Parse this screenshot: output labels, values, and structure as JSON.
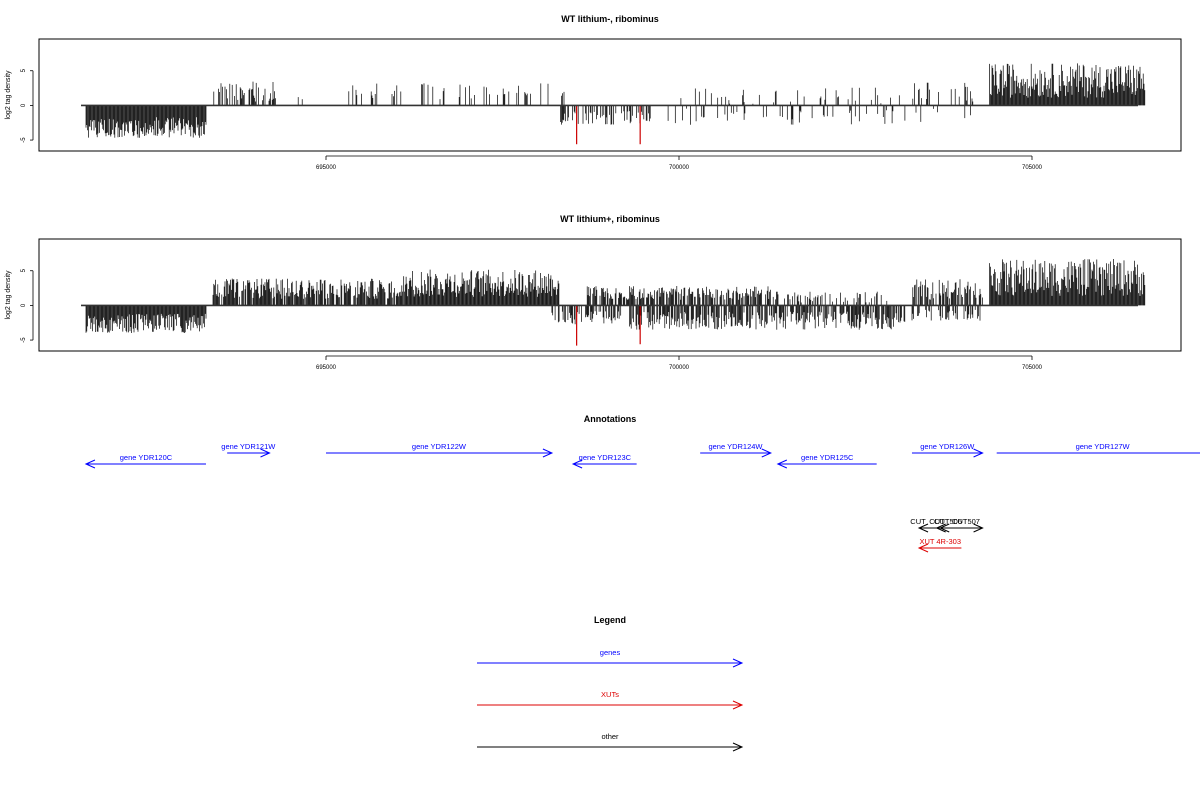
{
  "chart_data": [
    {
      "type": "bar",
      "title": "WT lithium-, ribominus",
      "ylabel": "log2 tag density",
      "xlabel": "",
      "xlim": [
        691000,
        707000
      ],
      "ylim": [
        -6,
        9
      ],
      "yticks": [
        "-5",
        "0",
        "5"
      ],
      "xticks": [
        "695000",
        "700000",
        "705000"
      ],
      "grid": false,
      "series": [
        {
          "color": "#000000",
          "regions": [
            {
              "from": 691600,
              "to": 693300,
              "mean": -3.2,
              "amp": 1.5,
              "sign": -1,
              "density": 1.0
            },
            {
              "from": 693400,
              "to": 694300,
              "mean": 2.0,
              "amp": 1.5,
              "sign": 1,
              "density": 0.35
            },
            {
              "from": 694300,
              "to": 695300,
              "mean": 1.0,
              "amp": 0.4,
              "sign": 1,
              "density": 0.04
            },
            {
              "from": 695300,
              "to": 698400,
              "mean": 2.0,
              "amp": 1.2,
              "sign": 1,
              "density": 0.22
            },
            {
              "from": 698300,
              "to": 699600,
              "mean": -1.8,
              "amp": 1.0,
              "sign": -1,
              "density": 0.35
            },
            {
              "from": 699800,
              "to": 703200,
              "mean": 1.4,
              "amp": 1.2,
              "sign": 1,
              "density": 0.12
            },
            {
              "from": 699800,
              "to": 703200,
              "mean": -1.6,
              "amp": 1.2,
              "sign": -1,
              "density": 0.12
            },
            {
              "from": 703300,
              "to": 704200,
              "mean": 2.0,
              "amp": 1.5,
              "sign": 1,
              "density": 0.22
            },
            {
              "from": 703300,
              "to": 704200,
              "mean": -1.5,
              "amp": 1.0,
              "sign": -1,
              "density": 0.12
            },
            {
              "from": 704400,
              "to": 706600,
              "mean": 3.6,
              "amp": 2.5,
              "sign": 1,
              "density": 1.0
            }
          ]
        },
        {
          "color": "#cc0000",
          "spikes": [
            [
              698550,
              -5.6
            ],
            [
              699450,
              -5.6
            ]
          ]
        }
      ]
    },
    {
      "type": "bar",
      "title": "WT lithium+, ribominus",
      "ylabel": "log2 tag density",
      "xlabel": "",
      "xlim": [
        691000,
        707000
      ],
      "ylim": [
        -6,
        9
      ],
      "yticks": [
        "-5",
        "0",
        "5"
      ],
      "xticks": [
        "695000",
        "700000",
        "705000"
      ],
      "grid": false,
      "series": [
        {
          "color": "#000000",
          "regions": [
            {
              "from": 691600,
              "to": 693300,
              "mean": -2.6,
              "amp": 1.4,
              "sign": -1,
              "density": 1.0
            },
            {
              "from": 693400,
              "to": 696100,
              "mean": 2.4,
              "amp": 1.5,
              "sign": 1,
              "density": 0.85
            },
            {
              "from": 696100,
              "to": 698300,
              "mean": 3.2,
              "amp": 2.0,
              "sign": 1,
              "density": 1.0
            },
            {
              "from": 698200,
              "to": 699200,
              "mean": -1.8,
              "amp": 1.0,
              "sign": -1,
              "density": 0.6
            },
            {
              "from": 698700,
              "to": 701300,
              "mean": 1.8,
              "amp": 1.0,
              "sign": 1,
              "density": 0.7
            },
            {
              "from": 699300,
              "to": 703200,
              "mean": -2.2,
              "amp": 1.3,
              "sign": -1,
              "density": 0.75
            },
            {
              "from": 701300,
              "to": 703000,
              "mean": 1.2,
              "amp": 0.8,
              "sign": 1,
              "density": 0.35
            },
            {
              "from": 703300,
              "to": 704300,
              "mean": 2.3,
              "amp": 1.5,
              "sign": 1,
              "density": 0.65
            },
            {
              "from": 703300,
              "to": 704300,
              "mean": -1.4,
              "amp": 0.8,
              "sign": -1,
              "density": 0.3
            },
            {
              "from": 704400,
              "to": 706600,
              "mean": 4.0,
              "amp": 2.7,
              "sign": 1,
              "density": 1.0
            }
          ]
        },
        {
          "color": "#cc0000",
          "spikes": [
            [
              698550,
              -5.8
            ],
            [
              699450,
              -5.6
            ]
          ]
        }
      ]
    }
  ],
  "annotations": {
    "title": "Annotations",
    "xlim": [
      691000,
      707000
    ],
    "genes": [
      {
        "label": "gene YDR120C",
        "from": 691600,
        "to": 693300,
        "strand": "-",
        "row": 1
      },
      {
        "label": "gene YDR121W",
        "from": 693600,
        "to": 694200,
        "strand": "+",
        "row": 0
      },
      {
        "label": "gene YDR122W",
        "from": 695000,
        "to": 698200,
        "strand": "+",
        "row": 0
      },
      {
        "label": "gene YDR123C",
        "from": 698500,
        "to": 699400,
        "strand": "-",
        "row": 1
      },
      {
        "label": "gene YDR124W",
        "from": 700300,
        "to": 701300,
        "strand": "+",
        "row": 0
      },
      {
        "label": "gene YDR125C",
        "from": 701400,
        "to": 702800,
        "strand": "-",
        "row": 1
      },
      {
        "label": "gene YDR126W",
        "from": 703300,
        "to": 704300,
        "strand": "+",
        "row": 0
      },
      {
        "label": "gene YDR127W",
        "from": 704500,
        "to": 707500,
        "strand": "+",
        "row": 0
      }
    ],
    "other": [
      {
        "label": "CUT",
        "from": 703400,
        "to": 703800,
        "strand": "-"
      },
      {
        "label": "CUT",
        "from": 703650,
        "to": 703950,
        "strand": "-"
      },
      {
        "label": "CUT506",
        "from": 703700,
        "to": 703950,
        "strand": "-"
      },
      {
        "label": "CUT507",
        "from": 703900,
        "to": 704300,
        "strand": "+"
      }
    ],
    "xuts": [
      {
        "label": "XUT 4R-303",
        "from": 703400,
        "to": 704000,
        "strand": "-"
      }
    ]
  },
  "legend": {
    "title": "Legend",
    "items": [
      {
        "label": "genes",
        "color": "#0000ff"
      },
      {
        "label": "XUTs",
        "color": "#dd0000"
      },
      {
        "label": "other",
        "color": "#000000"
      }
    ]
  }
}
